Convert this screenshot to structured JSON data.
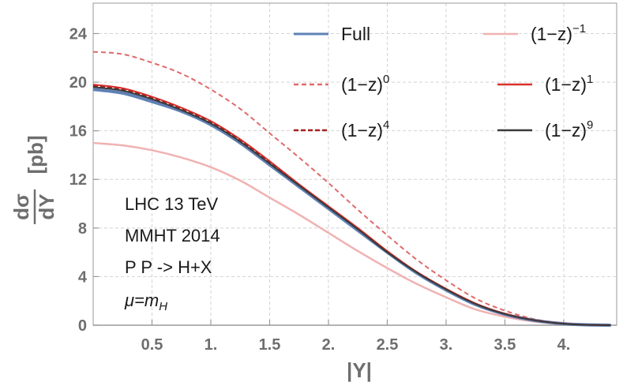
{
  "chart_data": {
    "type": "line",
    "xlabel": "|Y|",
    "ylabel": {
      "numerator": "dσ",
      "denominator": "dY",
      "unit": "[pb]"
    },
    "xlim": [
      0.0,
      4.45
    ],
    "ylim": [
      0,
      26.5
    ],
    "xticks": [
      0.5,
      1.0,
      1.5,
      2.0,
      2.5,
      3.0,
      3.5,
      4.0
    ],
    "xtick_labels": [
      "0.5",
      "1.",
      "1.5",
      "2.",
      "2.5",
      "3.",
      "3.5",
      "4."
    ],
    "yticks": [
      0,
      4,
      8,
      12,
      16,
      20,
      24
    ],
    "ytick_labels": [
      "0",
      "4",
      "8",
      "12",
      "16",
      "20",
      "24"
    ],
    "grid": true,
    "annotations": [
      {
        "kind": "plain",
        "text": "LHC 13 TeV"
      },
      {
        "kind": "plain",
        "text": "MMHT 2014"
      },
      {
        "kind": "plain",
        "text": "P P -> H+X"
      },
      {
        "kind": "mu",
        "main": "μ=m",
        "sub": "H"
      }
    ],
    "series": [
      {
        "name": "Full",
        "label_base": "Full",
        "label_sup": "",
        "color": "#5e81b5",
        "dash": "solid",
        "width": 4,
        "x": [
          0,
          0.25,
          0.5,
          0.75,
          1.0,
          1.25,
          1.5,
          1.75,
          2.0,
          2.25,
          2.5,
          2.75,
          3.0,
          3.25,
          3.5,
          3.75,
          4.0,
          4.2,
          4.4
        ],
        "y": [
          19.4,
          19.1,
          18.4,
          17.6,
          16.5,
          15.0,
          13.2,
          11.4,
          9.6,
          7.8,
          6.0,
          4.3,
          2.9,
          1.7,
          0.9,
          0.4,
          0.12,
          0.03,
          0.0
        ]
      },
      {
        "name": "(1-z)^-1",
        "label_base": "(1−z)",
        "label_sup": "−1",
        "color": "#f0b2b2",
        "dash": "solid",
        "width": 2.5,
        "x": [
          0,
          0.25,
          0.5,
          0.75,
          1.0,
          1.25,
          1.5,
          1.75,
          2.0,
          2.25,
          2.5,
          2.75,
          3.0,
          3.25,
          3.5,
          3.75,
          4.0,
          4.2,
          4.4
        ],
        "y": [
          15.0,
          14.8,
          14.4,
          13.8,
          13.0,
          11.9,
          10.5,
          9.1,
          7.6,
          6.1,
          4.7,
          3.4,
          2.3,
          1.3,
          0.7,
          0.3,
          0.1,
          0.02,
          0.0
        ]
      },
      {
        "name": "(1-z)^0",
        "label_base": "(1−z)",
        "label_sup": "0",
        "color": "#e06a6a",
        "dash": "6,4",
        "width": 2,
        "x": [
          0,
          0.25,
          0.5,
          0.75,
          1.0,
          1.25,
          1.5,
          1.75,
          2.0,
          2.25,
          2.5,
          2.75,
          3.0,
          3.25,
          3.5,
          3.75,
          4.0,
          4.2,
          4.4
        ],
        "y": [
          22.5,
          22.3,
          21.6,
          20.7,
          19.4,
          17.8,
          15.8,
          13.8,
          11.7,
          9.5,
          7.4,
          5.4,
          3.7,
          2.2,
          1.2,
          0.5,
          0.15,
          0.03,
          0.0
        ]
      },
      {
        "name": "(1-z)^1",
        "label_base": "(1−z)",
        "label_sup": "1",
        "color": "#d9302c",
        "dash": "solid",
        "width": 2,
        "x": [
          0,
          0.25,
          0.5,
          0.75,
          1.0,
          1.25,
          1.5,
          1.75,
          2.0,
          2.25,
          2.5,
          2.75,
          3.0,
          3.25,
          3.5,
          3.75,
          4.0,
          4.2,
          4.4
        ],
        "y": [
          19.8,
          19.5,
          18.8,
          17.9,
          16.8,
          15.3,
          13.5,
          11.6,
          9.8,
          8.0,
          6.1,
          4.4,
          3.0,
          1.8,
          0.95,
          0.42,
          0.13,
          0.03,
          0.0
        ]
      },
      {
        "name": "(1-z)^4",
        "label_base": "(1−z)",
        "label_sup": "4",
        "color": "#a32020",
        "dash": "6,3",
        "width": 2,
        "x": [
          0,
          0.25,
          0.5,
          0.75,
          1.0,
          1.25,
          1.5,
          1.75,
          2.0,
          2.25,
          2.5,
          2.75,
          3.0,
          3.25,
          3.5,
          3.75,
          4.0,
          4.2,
          4.4
        ],
        "y": [
          19.7,
          19.4,
          18.7,
          17.8,
          16.7,
          15.2,
          13.4,
          11.5,
          9.7,
          7.9,
          6.05,
          4.35,
          2.95,
          1.75,
          0.92,
          0.41,
          0.12,
          0.03,
          0.0
        ]
      },
      {
        "name": "(1-z)^9",
        "label_base": "(1−z)",
        "label_sup": "9",
        "color": "#3a3a3a",
        "dash": "solid",
        "width": 2,
        "x": [
          0,
          0.25,
          0.5,
          0.75,
          1.0,
          1.25,
          1.5,
          1.75,
          2.0,
          2.25,
          2.5,
          2.75,
          3.0,
          3.25,
          3.5,
          3.75,
          4.0,
          4.2,
          4.4
        ],
        "y": [
          19.6,
          19.3,
          18.6,
          17.7,
          16.6,
          15.1,
          13.3,
          11.5,
          9.7,
          7.9,
          6.0,
          4.35,
          2.95,
          1.75,
          0.92,
          0.41,
          0.12,
          0.03,
          0.0
        ]
      }
    ]
  }
}
